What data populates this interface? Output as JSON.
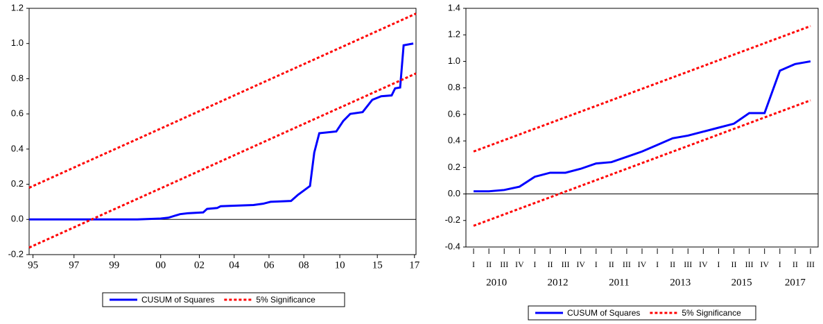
{
  "chart_data": [
    {
      "type": "line",
      "xlim": [
        0,
        100
      ],
      "xticks": [
        {
          "value": 1,
          "label": "95"
        },
        {
          "value": 11.6,
          "label": "97"
        },
        {
          "value": 22,
          "label": "99"
        },
        {
          "value": 34,
          "label": "00"
        },
        {
          "value": 44,
          "label": "02"
        },
        {
          "value": 53,
          "label": "04"
        },
        {
          "value": 62,
          "label": "06"
        },
        {
          "value": 71,
          "label": "08"
        },
        {
          "value": 80.3,
          "label": "10"
        },
        {
          "value": 90,
          "label": "15"
        },
        {
          "value": 99.6,
          "label": "17"
        }
      ],
      "ylim": [
        -0.2,
        1.2
      ],
      "yticks": [
        -0.2,
        {
          "value": 0,
          "label": "0.0"
        },
        0.2,
        0.4,
        0.6,
        0.8,
        {
          "value": 1,
          "label": "1.0"
        },
        1.2
      ],
      "series": [
        {
          "name": "CUSUM of Squares",
          "color": "#0000ff",
          "x": [
            0,
            28,
            34,
            36,
            39,
            41,
            45,
            46,
            48.6,
            49.5,
            53,
            58,
            60.6,
            62.4,
            67.7,
            69.5,
            72.6,
            73.7,
            75,
            79.4,
            81.2,
            83,
            86.2,
            88.7,
            91,
            93.7,
            94.6,
            95.9,
            96.8,
            99.3
          ],
          "values": [
            0,
            0,
            0.005,
            0.01,
            0.03,
            0.035,
            0.04,
            0.06,
            0.065,
            0.075,
            0.078,
            0.082,
            0.09,
            0.1,
            0.105,
            0.14,
            0.19,
            0.38,
            0.49,
            0.5,
            0.56,
            0.6,
            0.61,
            0.68,
            0.7,
            0.705,
            0.745,
            0.75,
            0.99,
            1.0
          ]
        },
        {
          "name": "5% Significance",
          "color": "#ff0000",
          "x": [
            0,
            100
          ],
          "upper": [
            0.18,
            1.17
          ],
          "lower": [
            -0.16,
            0.83
          ]
        }
      ]
    },
    {
      "type": "line",
      "groups": [
        {
          "name": "2010",
          "categories": [
            "I",
            "II",
            "III",
            "IV"
          ]
        },
        {
          "name": "2012",
          "categories": [
            "I",
            "II",
            "III",
            "IV"
          ]
        },
        {
          "name": "2011",
          "categories": [
            "I",
            "II",
            "III",
            "IV"
          ]
        },
        {
          "name": "2013",
          "categories": [
            "I",
            "II",
            "III",
            "IV"
          ]
        },
        {
          "name": "2015",
          "categories": [
            "I",
            "II",
            "III",
            "IV"
          ]
        },
        {
          "name": "2017",
          "categories": [
            "I",
            "II",
            "III"
          ]
        }
      ],
      "ylim": [
        -0.4,
        1.4
      ],
      "yticks": [
        -0.4,
        -0.2,
        {
          "value": 0,
          "label": "0.0"
        },
        0.2,
        0.4,
        0.6,
        0.8,
        {
          "value": 1,
          "label": "1.0"
        },
        1.2,
        1.4
      ],
      "series": [
        {
          "name": "CUSUM of Squares",
          "color": "#0000ff",
          "values": [
            0.02,
            0.02,
            0.03,
            0.055,
            0.13,
            0.16,
            0.16,
            0.19,
            0.23,
            0.24,
            0.28,
            0.32,
            0.37,
            0.42,
            0.44,
            0.47,
            0.5,
            0.53,
            0.61,
            0.61,
            0.93,
            0.98,
            1.0
          ]
        },
        {
          "name": "5% Significance",
          "color": "#ff0000",
          "upper": [
            0.32,
            0.363,
            0.406,
            0.449,
            0.492,
            0.535,
            0.578,
            0.621,
            0.664,
            0.707,
            0.75,
            0.793,
            0.836,
            0.879,
            0.922,
            0.965,
            1.008,
            1.051,
            1.094,
            1.137,
            1.18,
            1.223,
            1.266
          ],
          "lower": [
            -0.24,
            -0.197,
            -0.154,
            -0.111,
            -0.068,
            -0.025,
            0.018,
            0.061,
            0.104,
            0.147,
            0.19,
            0.233,
            0.276,
            0.319,
            0.362,
            0.405,
            0.448,
            0.491,
            0.534,
            0.577,
            0.62,
            0.663,
            0.706
          ]
        }
      ]
    }
  ]
}
